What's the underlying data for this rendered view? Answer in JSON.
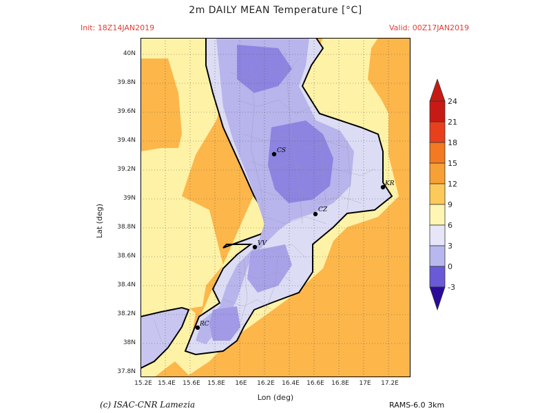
{
  "title": "2m DAILY MEAN Temperature [°C]",
  "init": "Init: 18Z14JAN2019",
  "valid": "Valid: 00Z17JAN2019",
  "axes": {
    "xlabel": "Lon (deg)",
    "ylabel": "Lat (deg)",
    "xticks": [
      "15.2E",
      "15.4E",
      "15.6E",
      "15.8E",
      "16E",
      "16.2E",
      "16.4E",
      "16.6E",
      "16.8E",
      "17E",
      "17.2E"
    ],
    "yticks": [
      "40N",
      "39.8N",
      "39.6N",
      "39.4N",
      "39.2N",
      "39N",
      "38.8N",
      "38.6N",
      "38.4N",
      "38.2N",
      "38N",
      "37.8N"
    ]
  },
  "colorbar": {
    "labels": [
      "24",
      "21",
      "18",
      "15",
      "12",
      "9",
      "6",
      "3",
      "0",
      "-3"
    ],
    "colors": [
      "#c81a14",
      "#e8401c",
      "#f37a22",
      "#f7a035",
      "#fcca5a",
      "#fff6b4",
      "#e6e6f8",
      "#b8b8ee",
      "#8c86e4",
      "#6a5ad8",
      "#2a0a9a"
    ]
  },
  "cities": [
    {
      "label": "CS"
    },
    {
      "label": "KR"
    },
    {
      "label": "CZ"
    },
    {
      "label": "VV"
    },
    {
      "label": "RC"
    }
  ],
  "credit": "(c) ISAC-CNR Lamezia",
  "model": "RAMS-6.0 3km",
  "colors": {
    "sea": "#fcb64a",
    "coastal_band": "#fef2a6",
    "land_light": "#dcdcf4",
    "land_mid": "#b8b4ec",
    "land_dark": "#8c84e0",
    "accent_red": "#e0403a"
  }
}
